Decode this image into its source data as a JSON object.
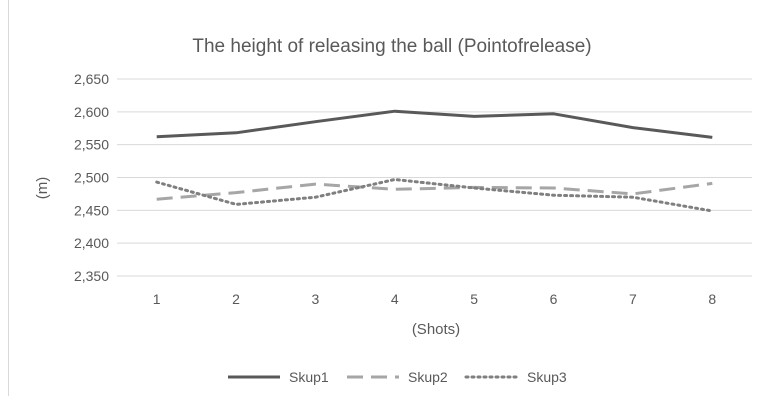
{
  "chart_data": {
    "type": "line",
    "title": "The height of releasing the ball (Pointofrelease)",
    "xlabel": "(Shots)",
    "ylabel": "(m)",
    "categories": [
      "1",
      "2",
      "3",
      "4",
      "5",
      "6",
      "7",
      "8"
    ],
    "ylim": [
      2.35,
      2.65
    ],
    "yticks": [
      2.35,
      2.4,
      2.45,
      2.5,
      2.55,
      2.6,
      2.65
    ],
    "ytick_labels": [
      "2,350",
      "2,400",
      "2,450",
      "2,500",
      "2,550",
      "2,600",
      "2,650"
    ],
    "grid": true,
    "legend_position": "bottom",
    "series": [
      {
        "name": "Skup1",
        "color": "#595959",
        "style": "solid",
        "values": [
          2.562,
          2.568,
          2.585,
          2.601,
          2.593,
          2.597,
          2.576,
          2.561
        ]
      },
      {
        "name": "Skup2",
        "color": "#a6a6a6",
        "style": "dashed",
        "values": [
          2.467,
          2.477,
          2.49,
          2.482,
          2.485,
          2.484,
          2.475,
          2.491
        ]
      },
      {
        "name": "Skup3",
        "color": "#7f7f7f",
        "style": "dotted",
        "values": [
          2.493,
          2.459,
          2.47,
          2.497,
          2.484,
          2.473,
          2.47,
          2.449
        ]
      }
    ]
  }
}
